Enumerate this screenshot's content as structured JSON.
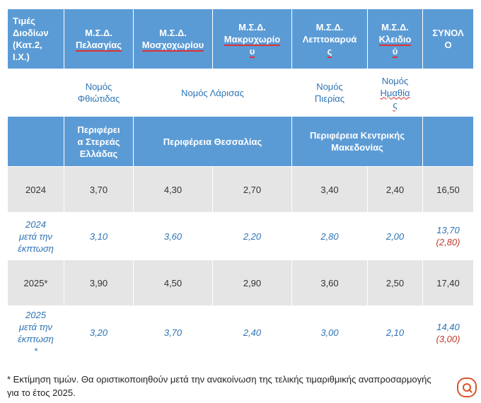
{
  "table": {
    "header": {
      "label": [
        "Τιμές",
        "Διοδίων",
        "(Κατ.2,",
        "Ι.Χ.)"
      ],
      "columns": [
        [
          "Μ.Σ.Δ.",
          "Πελασγίας"
        ],
        [
          "Μ.Σ.Δ.",
          "Μοσχοχωρίου"
        ],
        [
          "Μ.Σ.Δ.",
          "Μακρυχωρίο",
          "υ"
        ],
        [
          "Μ.Σ.Δ.",
          "Λεπτοκαρυά",
          "ς"
        ],
        [
          "Μ.Σ.Δ.",
          "Κλειδιο",
          "ύ"
        ]
      ],
      "total": [
        "ΣΥΝΟΛ",
        "Ο"
      ]
    },
    "prefectures": {
      "fthiotida": [
        "Νομός",
        "Φθιώτιδας"
      ],
      "larisa": "Νομός Λάρισας",
      "pieria": [
        "Νομός",
        "Πιερίας"
      ],
      "imathia": [
        "Νομός",
        "Ημαθία",
        "ς"
      ]
    },
    "regions": {
      "sterea": [
        "Περιφέρει",
        "α Στερεάς",
        "Ελλάδας"
      ],
      "thessalia": "Περιφέρεια Θεσσαλίας",
      "kentriki": [
        "Περιφέρεια Κεντρικής",
        "Μακεδονίας"
      ]
    },
    "rows": [
      {
        "year": [
          "2024"
        ],
        "values": [
          "3,70",
          "4,30",
          "2,70",
          "3,40",
          "2,40"
        ],
        "total": "16,50",
        "total_note": "",
        "style": "plain"
      },
      {
        "year": [
          "2024",
          "μετά την",
          "έκπτωση"
        ],
        "values": [
          "3,10",
          "3,60",
          "2,20",
          "2,80",
          "2,00"
        ],
        "total": "13,70",
        "total_note": "(2,80)",
        "style": "discount"
      },
      {
        "year": [
          "2025*"
        ],
        "values": [
          "3,90",
          "4,50",
          "2,90",
          "3,60",
          "2,50"
        ],
        "total": "17,40",
        "total_note": "",
        "style": "plain"
      },
      {
        "year": [
          "2025",
          "μετά την",
          "έκπτωση",
          "*"
        ],
        "values": [
          "3,20",
          "3,70",
          "2,40",
          "3,00",
          "2,10"
        ],
        "total": "14,40",
        "total_note": "(3,00)",
        "style": "discount"
      }
    ]
  },
  "footnote": [
    "* Εκτίμηση τιμών. Θα οριστικοποιηθούν μετά την ανακοίνωση της τελικής τιμαριθμικής αναπροσαρμογής",
    "για το έτος 2025."
  ],
  "colors": {
    "header_blue": "#5b9bd5",
    "discount_text": "#2e74b5",
    "discount_note": "#c0392b",
    "shaded_row": "#e5e5e5"
  },
  "icons": {
    "corner_badge": "corner-logo-icon"
  }
}
